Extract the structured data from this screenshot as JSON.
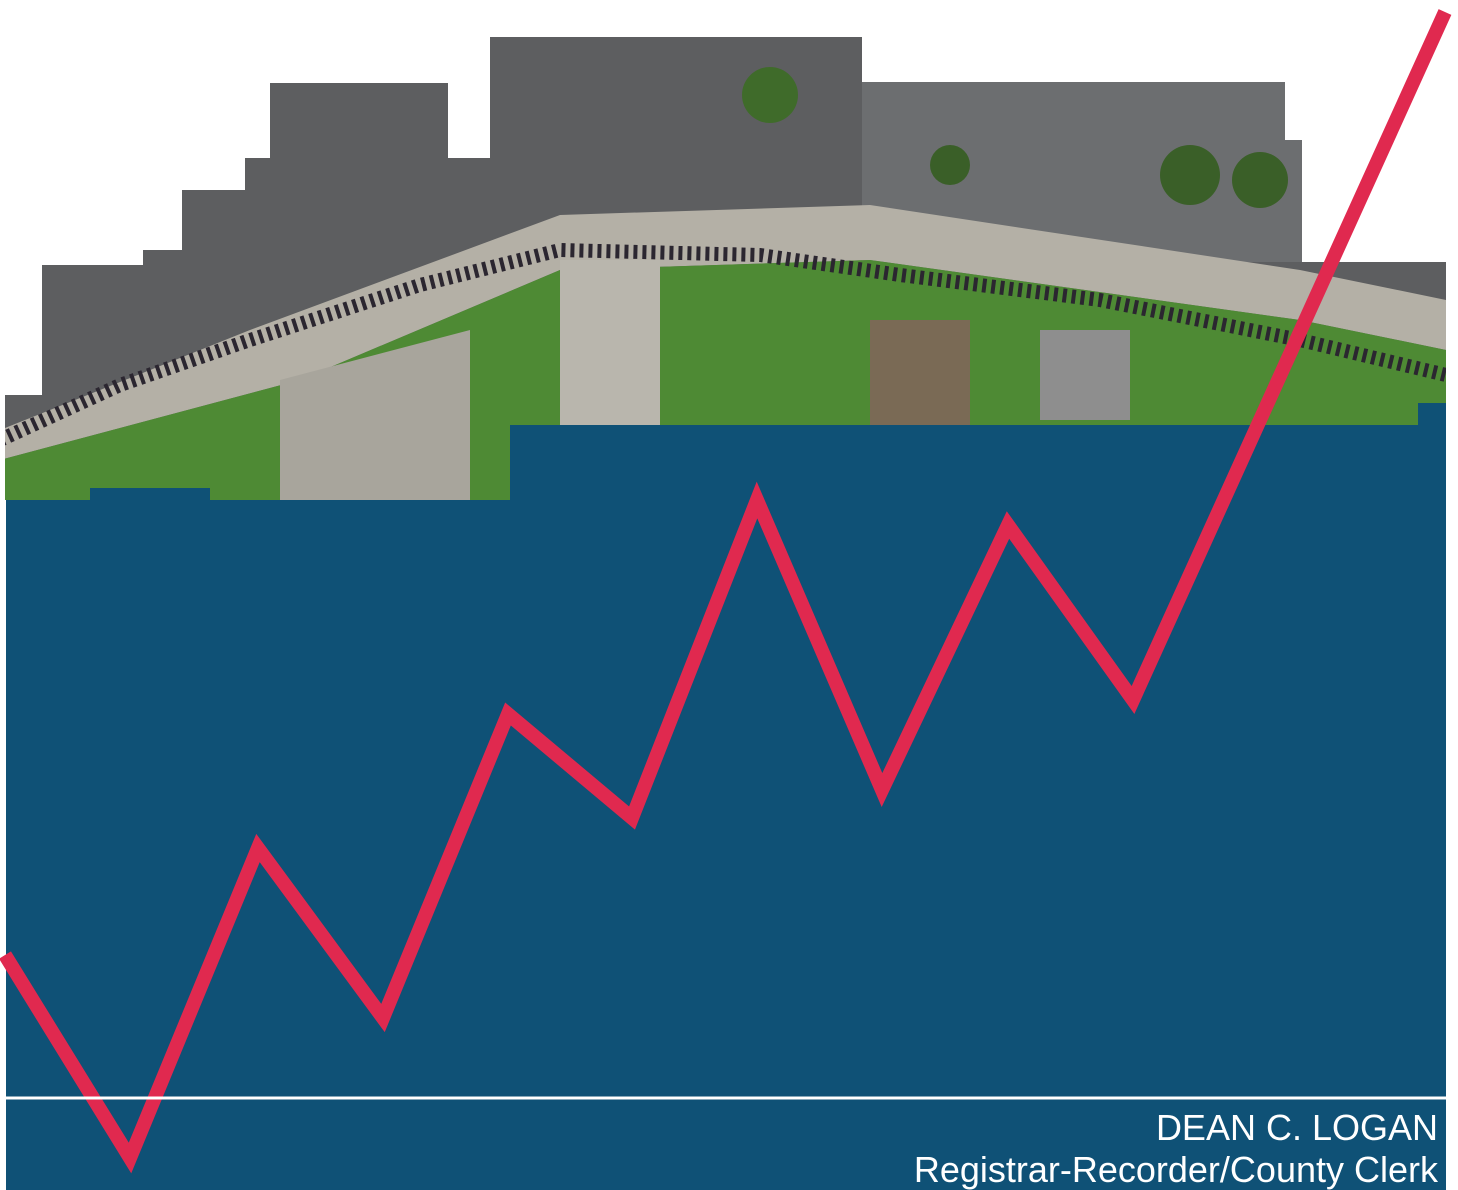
{
  "footer": {
    "name": "DEAN C. LOGAN",
    "title": "Registrar-Recorder/County Clerk"
  }
}
